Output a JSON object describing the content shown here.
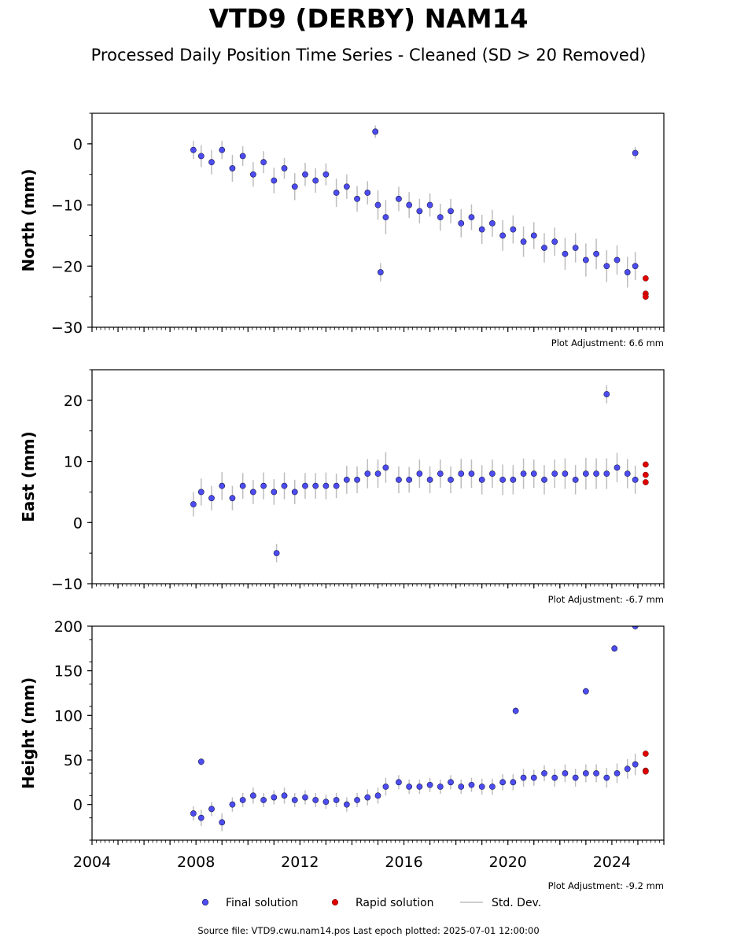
{
  "title": "VTD9 (DERBY) NAM14",
  "subtitle": "Processed Daily Position Time Series - Cleaned (SD > 20 Removed)",
  "footer": "Source file: VTD9.cwu.nam14.pos  Last epoch plotted: 2025-07-01 12:00:00",
  "legend": {
    "final": "Final solution",
    "rapid": "Rapid solution",
    "std": "Std. Dev."
  },
  "colors": {
    "final": "#4c4cf2",
    "rapid": "#e00000",
    "std": "#bdbdbd"
  },
  "chart_data": [
    {
      "type": "scatter",
      "ylabel": "North (mm)",
      "annotation": "Plot Adjustment: 6.6 mm",
      "xlim": [
        2004,
        2026
      ],
      "ylim": [
        -30,
        5
      ],
      "yticks": [
        0,
        -10,
        -20,
        -30
      ],
      "xticks": [],
      "series": [
        {
          "name": "Final solution",
          "x": [
            2007.9,
            2008.2,
            2008.6,
            2009.0,
            2009.4,
            2009.8,
            2010.2,
            2010.6,
            2011.0,
            2011.4,
            2011.8,
            2012.2,
            2012.6,
            2013.0,
            2013.4,
            2013.8,
            2014.2,
            2014.6,
            2015.0,
            2015.3,
            2015.8,
            2016.2,
            2016.6,
            2017.0,
            2017.4,
            2017.8,
            2018.2,
            2018.6,
            2019.0,
            2019.4,
            2019.8,
            2020.2,
            2020.6,
            2021.0,
            2021.4,
            2021.8,
            2022.2,
            2022.6,
            2023.0,
            2023.4,
            2023.8,
            2024.2,
            2024.6,
            2024.9,
            2014.9,
            2015.1,
            2024.9
          ],
          "y": [
            -1,
            -2,
            -3,
            -1,
            -4,
            -2,
            -5,
            -3,
            -6,
            -4,
            -7,
            -5,
            -6,
            -5,
            -8,
            -7,
            -9,
            -8,
            -10,
            -12,
            -9,
            -10,
            -11,
            -10,
            -12,
            -11,
            -13,
            -12,
            -14,
            -13,
            -15,
            -14,
            -16,
            -15,
            -17,
            -16,
            -18,
            -17,
            -19,
            -18,
            -20,
            -19,
            -21,
            -20,
            2,
            -21,
            -1.5
          ],
          "ystd": [
            1.5,
            1.8,
            2,
            1.5,
            2.2,
            1.6,
            2,
            1.8,
            2.1,
            1.7,
            2.2,
            1.9,
            2,
            1.8,
            2.3,
            2,
            2.1,
            1.9,
            2.4,
            2.8,
            2,
            2.1,
            2,
            1.9,
            2.2,
            2,
            2.3,
            2.1,
            2.4,
            2.2,
            2.5,
            2.3,
            2.5,
            2.2,
            2.4,
            2.3,
            2.6,
            2.4,
            2.7,
            2.5,
            2.6,
            2.4,
            2.5,
            2.3,
            1,
            1.5,
            1
          ]
        },
        {
          "name": "Rapid solution",
          "x": [
            2025.3,
            2025.3,
            2025.3
          ],
          "y": [
            -22,
            -24.5,
            -25
          ]
        }
      ]
    },
    {
      "type": "scatter",
      "ylabel": "East (mm)",
      "annotation": "Plot Adjustment: -6.7 mm",
      "xlim": [
        2004,
        2026
      ],
      "ylim": [
        -10,
        25
      ],
      "yticks": [
        20,
        10,
        0,
        -10
      ],
      "xticks": [],
      "series": [
        {
          "name": "Final solution",
          "x": [
            2007.9,
            2008.2,
            2008.6,
            2009.0,
            2009.4,
            2009.8,
            2010.2,
            2010.6,
            2011.0,
            2011.4,
            2011.8,
            2012.2,
            2012.6,
            2013.0,
            2013.4,
            2013.8,
            2014.2,
            2014.6,
            2015.0,
            2015.3,
            2015.8,
            2016.2,
            2016.6,
            2017.0,
            2017.4,
            2017.8,
            2018.2,
            2018.6,
            2019.0,
            2019.4,
            2019.8,
            2020.2,
            2020.6,
            2021.0,
            2021.4,
            2021.8,
            2022.2,
            2022.6,
            2023.0,
            2023.4,
            2023.8,
            2024.2,
            2024.6,
            2024.9,
            2011.1,
            2023.8
          ],
          "y": [
            3,
            5,
            4,
            6,
            4,
            6,
            5,
            6,
            5,
            6,
            5,
            6,
            6,
            6,
            6,
            7,
            7,
            8,
            8,
            9,
            7,
            7,
            8,
            7,
            8,
            7,
            8,
            8,
            7,
            8,
            7,
            7,
            8,
            8,
            7,
            8,
            8,
            7,
            8,
            8,
            8,
            9,
            8,
            7,
            -5,
            21
          ],
          "ystd": [
            2,
            2.2,
            2,
            2.3,
            2,
            2.1,
            2,
            2.2,
            2.1,
            2.2,
            2,
            2.1,
            2.1,
            2.2,
            2,
            2.3,
            2.2,
            2.4,
            2.3,
            2.5,
            2.2,
            2.1,
            2.3,
            2.2,
            2.3,
            2.2,
            2.4,
            2.3,
            2.4,
            2.3,
            2.5,
            2.4,
            2.5,
            2.3,
            2.4,
            2.3,
            2.5,
            2.4,
            2.6,
            2.5,
            2.5,
            2.4,
            2.4,
            2.3,
            1.5,
            1.5
          ]
        },
        {
          "name": "Rapid solution",
          "x": [
            2025.3,
            2025.3,
            2025.3
          ],
          "y": [
            9.5,
            7.8,
            6.6
          ]
        }
      ]
    },
    {
      "type": "scatter",
      "ylabel": "Height (mm)",
      "annotation": "Plot Adjustment: -9.2 mm",
      "xlim": [
        2004,
        2026
      ],
      "ylim": [
        -40,
        200
      ],
      "yticks": [
        200,
        150,
        100,
        50,
        0
      ],
      "xticks": [
        2004,
        2008,
        2012,
        2016,
        2020,
        2024
      ],
      "series": [
        {
          "name": "Final solution",
          "x": [
            2007.9,
            2008.2,
            2008.6,
            2009.0,
            2009.4,
            2009.8,
            2010.2,
            2010.6,
            2011.0,
            2011.4,
            2011.8,
            2012.2,
            2012.6,
            2013.0,
            2013.4,
            2013.8,
            2014.2,
            2014.6,
            2015.0,
            2015.3,
            2015.8,
            2016.2,
            2016.6,
            2017.0,
            2017.4,
            2017.8,
            2018.2,
            2018.6,
            2019.0,
            2019.4,
            2019.8,
            2020.2,
            2020.6,
            2021.0,
            2021.4,
            2021.8,
            2022.2,
            2022.6,
            2023.0,
            2023.4,
            2023.8,
            2024.2,
            2024.6,
            2024.9,
            2008.2,
            2020.3,
            2023.0,
            2024.1,
            2024.9
          ],
          "y": [
            -10,
            -15,
            -5,
            -20,
            0,
            5,
            10,
            5,
            8,
            10,
            5,
            8,
            5,
            3,
            5,
            0,
            5,
            8,
            10,
            20,
            25,
            20,
            20,
            22,
            20,
            25,
            20,
            22,
            20,
            20,
            25,
            25,
            30,
            30,
            35,
            30,
            35,
            30,
            35,
            35,
            30,
            35,
            40,
            45,
            48,
            105,
            127,
            175,
            200
          ],
          "ystd": [
            8,
            9,
            8,
            10,
            8,
            8,
            9,
            8,
            8,
            9,
            8,
            8,
            8,
            8,
            8,
            8,
            8,
            9,
            9,
            10,
            8,
            8,
            8,
            8,
            8,
            8,
            8,
            8,
            9,
            9,
            9,
            9,
            10,
            9,
            9,
            10,
            10,
            10,
            10,
            10,
            11,
            11,
            11,
            12,
            4,
            4,
            4,
            4,
            4
          ]
        },
        {
          "name": "Rapid solution",
          "x": [
            2025.3,
            2025.3,
            2025.3
          ],
          "y": [
            57,
            38,
            37
          ]
        }
      ]
    }
  ]
}
